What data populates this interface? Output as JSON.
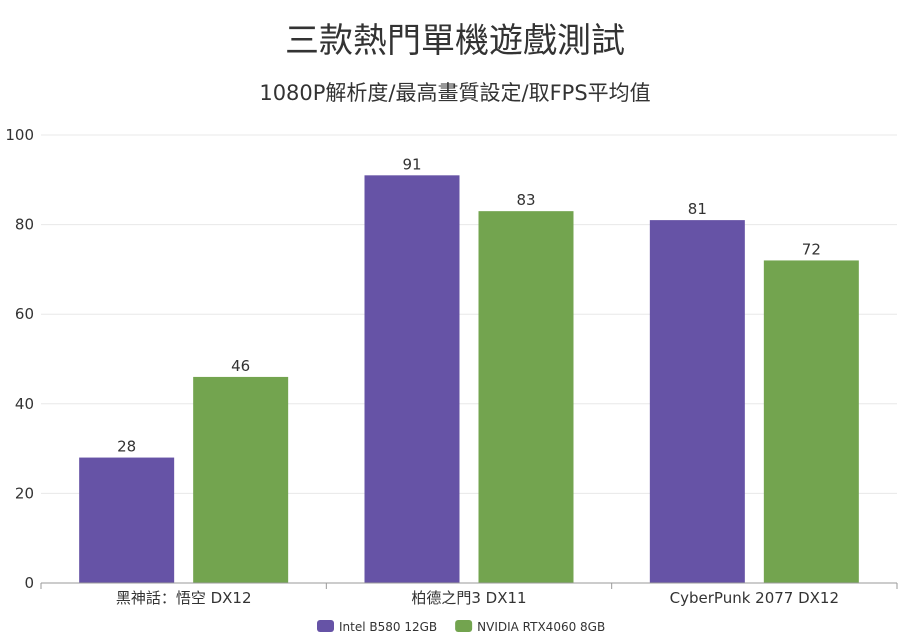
{
  "chart_data": {
    "type": "bar",
    "title": "三款熱門單機遊戲測試",
    "subtitle": "1080P解析度/最高畫質設定/取FPS平均值",
    "categories": [
      "黑神話：悟空 DX12",
      "柏德之門3 DX11",
      "CyberPunk 2077 DX12"
    ],
    "series": [
      {
        "name": "Intel B580 12GB",
        "color": "#6653a6",
        "values": [
          28,
          91,
          81
        ]
      },
      {
        "name": "NVIDIA RTX4060 8GB",
        "color": "#73a44f",
        "values": [
          46,
          83,
          72
        ]
      }
    ],
    "yticks": [
      0,
      20,
      40,
      60,
      80,
      100
    ],
    "ylim": [
      0,
      100
    ],
    "grid": true,
    "legend_position": "bottom-center"
  }
}
